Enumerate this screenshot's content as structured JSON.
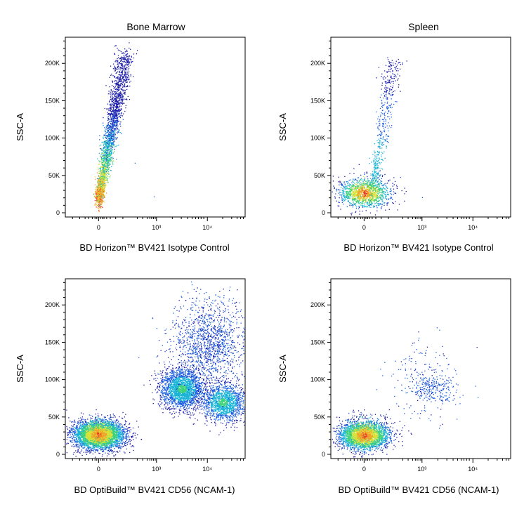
{
  "colors": {
    "density_scale": [
      "#1a1aa8",
      "#1e5fe0",
      "#19b4d8",
      "#3fd27a",
      "#d8e23a",
      "#f2a02a",
      "#e8262a"
    ],
    "axis": "#000000",
    "background": "#ffffff"
  },
  "chart_data": [
    {
      "type": "scatter",
      "title": "Bone Marrow",
      "xlabel": "BD Horizon™ BV421 Isotype Control",
      "ylabel": "SSC-A",
      "x_scale": "biexponential",
      "x_ticks": [
        "0",
        "10³",
        "10⁴"
      ],
      "y_ticks": [
        "0",
        "50K",
        "100K",
        "150K",
        "200K"
      ],
      "ylim": [
        0,
        235000
      ],
      "populations": [
        {
          "shape": "streak",
          "from": {
            "x": 0,
            "y": 20000
          },
          "to": {
            "x": 250,
            "y": 215000
          },
          "count": 2600,
          "density_peak": "red"
        }
      ],
      "sparse_events": [
        {
          "x": 900,
          "y": 22000
        },
        {
          "x": 400,
          "y": 67000
        }
      ]
    },
    {
      "type": "scatter",
      "title": "Spleen",
      "xlabel": "BD Horizon™ BV421 Isotype Control",
      "ylabel": "SSC-A",
      "x_scale": "biexponential",
      "x_ticks": [
        "0",
        "10³",
        "10⁴"
      ],
      "y_ticks": [
        "0",
        "50K",
        "100K",
        "150K",
        "200K"
      ],
      "ylim": [
        0,
        235000
      ],
      "populations": [
        {
          "shape": "blob",
          "center": {
            "x": 0,
            "y": 23000
          },
          "count": 1400,
          "density_peak": "red"
        },
        {
          "shape": "streak",
          "from": {
            "x": 50,
            "y": 30000
          },
          "to": {
            "x": 300,
            "y": 205000
          },
          "count": 500,
          "density_peak": "blue"
        }
      ],
      "sparse_events": [
        {
          "x": 1000,
          "y": 21000
        },
        {
          "x": 400,
          "y": 48000
        }
      ]
    },
    {
      "type": "scatter",
      "title": "",
      "xlabel": "BD OptiBuild™ BV421 CD56 (NCAM-1)",
      "ylabel": "SSC-A",
      "x_scale": "biexponential",
      "x_ticks": [
        "0",
        "10³",
        "10⁴"
      ],
      "y_ticks": [
        "0",
        "50K",
        "100K",
        "150K",
        "200K"
      ],
      "ylim": [
        0,
        235000
      ],
      "populations": [
        {
          "shape": "blob",
          "center": {
            "x": 0,
            "y": 23000
          },
          "count": 4200,
          "density_peak": "red"
        },
        {
          "shape": "blob",
          "center": {
            "x": 2500,
            "y": 88000
          },
          "count": 2200,
          "density_peak": "cyan"
        },
        {
          "shape": "blob",
          "center": {
            "x": 10000,
            "y": 70000
          },
          "count": 1500,
          "density_peak": "cyan"
        },
        {
          "shape": "scatter",
          "center": {
            "x": 6000,
            "y": 150000
          },
          "count": 1400,
          "density_peak": "blue"
        }
      ]
    },
    {
      "type": "scatter",
      "title": "",
      "xlabel": "BD OptiBuild™ BV421 CD56 (NCAM-1)",
      "ylabel": "SSC-A",
      "x_scale": "biexponential",
      "x_ticks": [
        "0",
        "10³",
        "10⁴"
      ],
      "y_ticks": [
        "0",
        "50K",
        "100K",
        "150K",
        "200K"
      ],
      "ylim": [
        0,
        235000
      ],
      "populations": [
        {
          "shape": "blob",
          "center": {
            "x": 0,
            "y": 22000
          },
          "count": 3000,
          "density_peak": "red"
        },
        {
          "shape": "blob",
          "center": {
            "x": 1500,
            "y": 90000
          },
          "count": 220,
          "density_peak": "blue"
        },
        {
          "shape": "scatter",
          "center": {
            "x": 1000,
            "y": 100000
          },
          "count": 180,
          "density_peak": "blue"
        }
      ]
    }
  ]
}
